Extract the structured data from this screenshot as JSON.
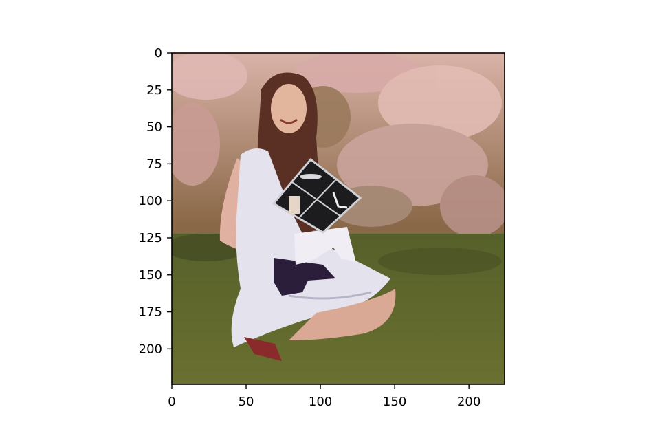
{
  "chart_data": {
    "type": "image",
    "title": "",
    "xlabel": "",
    "ylabel": "",
    "xlim": [
      0,
      224
    ],
    "ylim": [
      224,
      0
    ],
    "x_ticks": [
      0,
      50,
      100,
      150,
      200
    ],
    "y_ticks": [
      0,
      25,
      50,
      75,
      100,
      125,
      150,
      175,
      200
    ],
    "grid": false,
    "image_content": "painterly-style photo of a smiling woman with long brown hair in a white dress kneeling on grass in front of a pink flowering bush, holding a decorated black graduation cap"
  },
  "colors": {
    "axis": "#000000",
    "background": "#ffffff"
  }
}
